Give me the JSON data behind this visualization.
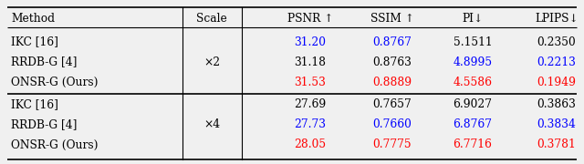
{
  "headers": [
    "Method",
    "Scale",
    "PSNR ↑",
    "SSIM ↑",
    "PI↓",
    "LPIPS↓"
  ],
  "rows_x2": [
    {
      "method": "IKC [16]",
      "scale": "",
      "psnr": "31.20",
      "ssim": "0.8767",
      "pi": "5.1511",
      "lpips": "0.2350",
      "psnr_c": "blue",
      "ssim_c": "blue",
      "pi_c": "black",
      "lpips_c": "black"
    },
    {
      "method": "RRDB-G [4]",
      "scale": "×2",
      "psnr": "31.18",
      "ssim": "0.8763",
      "pi": "4.8995",
      "lpips": "0.2213",
      "psnr_c": "black",
      "ssim_c": "black",
      "pi_c": "blue",
      "lpips_c": "blue"
    },
    {
      "method": "ONSR-G (Ours)",
      "scale": "",
      "psnr": "31.53",
      "ssim": "0.8889",
      "pi": "4.5586",
      "lpips": "0.1949",
      "psnr_c": "red",
      "ssim_c": "red",
      "pi_c": "red",
      "lpips_c": "red"
    }
  ],
  "rows_x4": [
    {
      "method": "IKC [16]",
      "scale": "",
      "psnr": "27.69",
      "ssim": "0.7657",
      "pi": "6.9027",
      "lpips": "0.3863",
      "psnr_c": "black",
      "ssim_c": "black",
      "pi_c": "black",
      "lpips_c": "black"
    },
    {
      "method": "RRDB-G [4]",
      "scale": "×4",
      "psnr": "27.73",
      "ssim": "0.7660",
      "pi": "6.8767",
      "lpips": "0.3834",
      "psnr_c": "blue",
      "ssim_c": "blue",
      "pi_c": "blue",
      "lpips_c": "blue"
    },
    {
      "method": "ONSR-G (Ours)",
      "scale": "",
      "psnr": "28.05",
      "ssim": "0.7775",
      "pi": "6.7716",
      "lpips": "0.3781",
      "psnr_c": "red",
      "ssim_c": "red",
      "pi_c": "red",
      "lpips_c": "red"
    }
  ],
  "background": "#f0f0f0",
  "font_size": 8.8
}
